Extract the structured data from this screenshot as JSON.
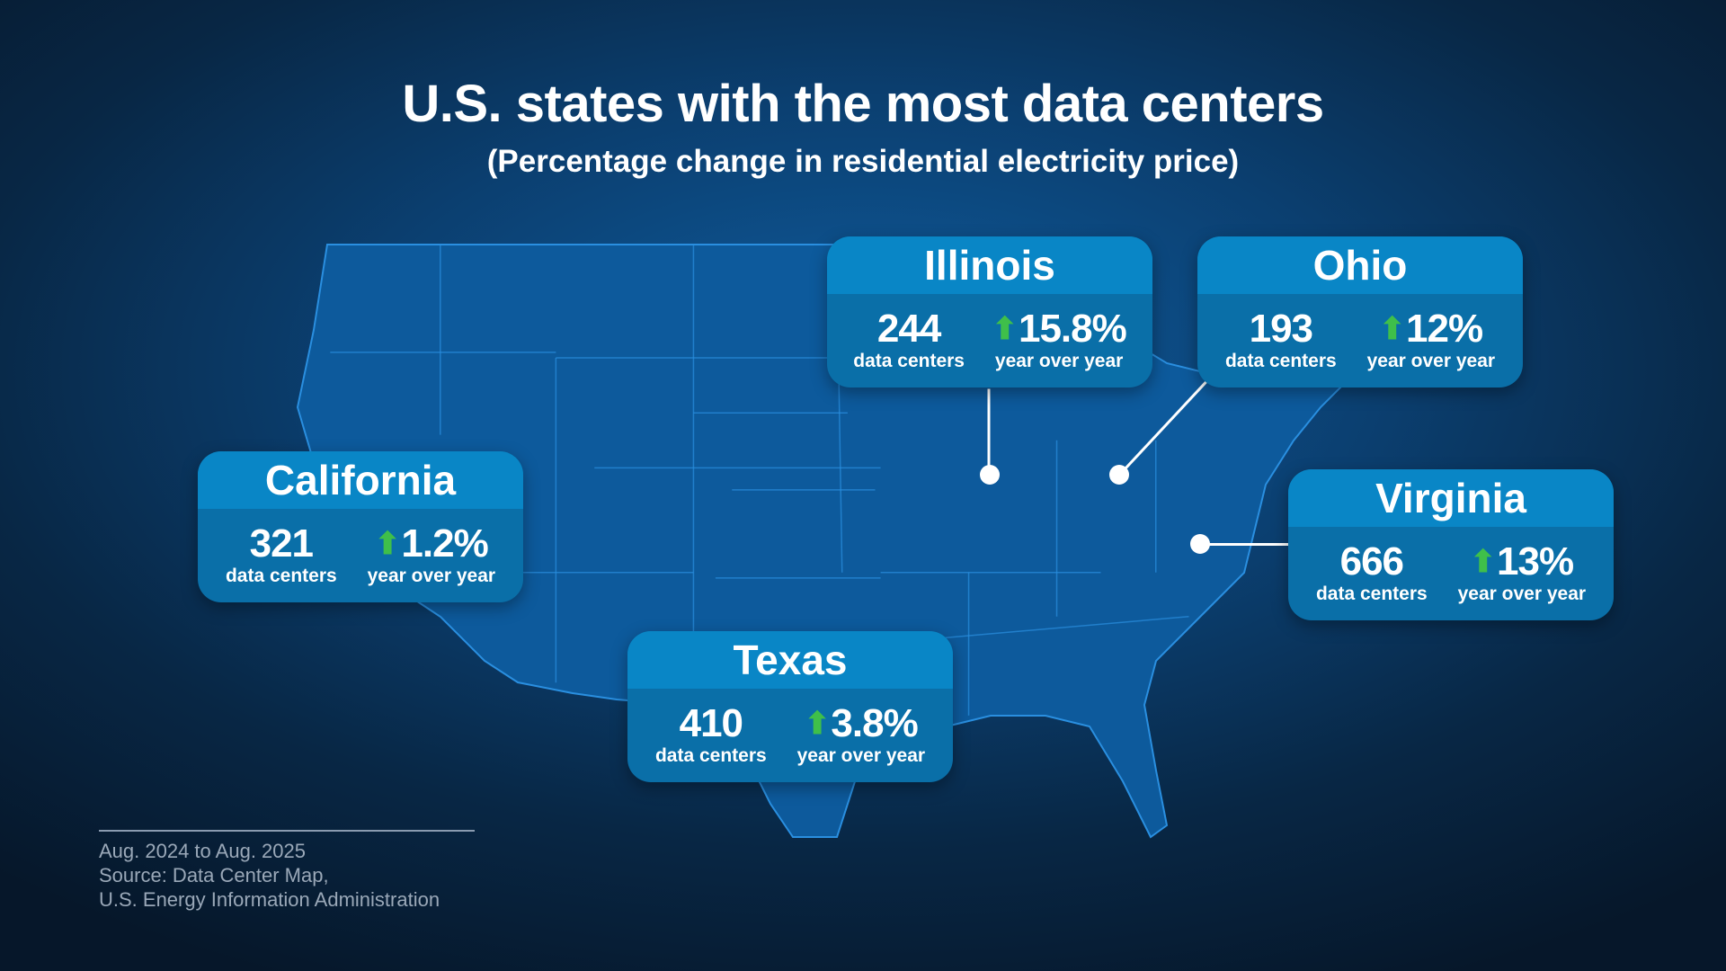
{
  "title": "U.S. states with the most data centers",
  "subtitle": "(Percentage change in residential electricity price)",
  "colors": {
    "card_header": "#0986c6",
    "card_body": "#0a6fa8",
    "up_arrow": "#3fbf4a",
    "background": "#0b3f70"
  },
  "states": [
    {
      "name": "Illinois",
      "count": "244",
      "count_label": "data centers",
      "change": "15.8%",
      "change_label": "year over year",
      "direction": "up"
    },
    {
      "name": "Ohio",
      "count": "193",
      "count_label": "data centers",
      "change": "12%",
      "change_label": "year over year",
      "direction": "up"
    },
    {
      "name": "California",
      "count": "321",
      "count_label": "data centers",
      "change": "1.2%",
      "change_label": "year over year",
      "direction": "up"
    },
    {
      "name": "Virginia",
      "count": "666",
      "count_label": "data centers",
      "change": "13%",
      "change_label": "year over year",
      "direction": "up"
    },
    {
      "name": "Texas",
      "count": "410",
      "count_label": "data centers",
      "change": "3.8%",
      "change_label": "year over year",
      "direction": "up"
    }
  ],
  "footer": {
    "period": "Aug. 2024 to Aug. 2025",
    "source_line1": "Source: Data Center Map,",
    "source_line2": "U.S. Energy Information Administration"
  }
}
